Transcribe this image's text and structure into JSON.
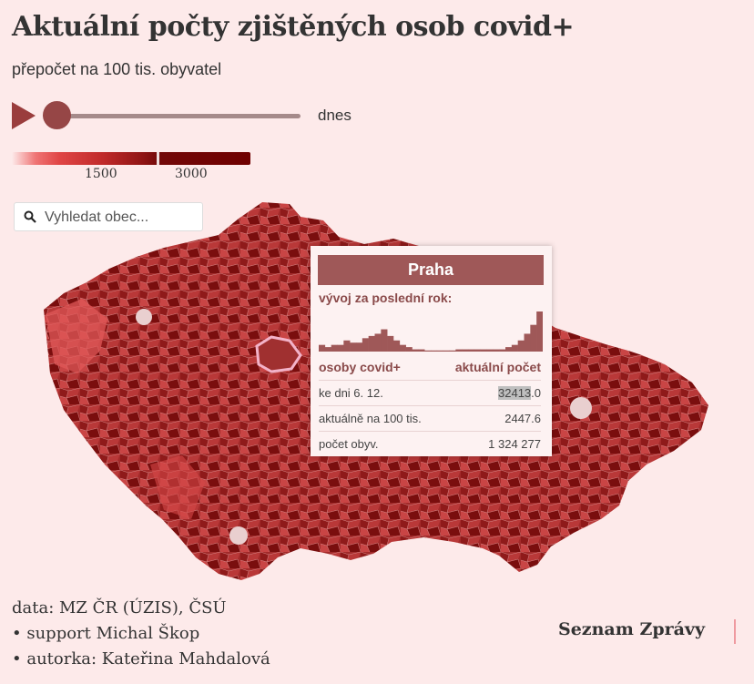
{
  "header": {
    "title": "Aktuální počty zjištěných osob covid+",
    "subtitle": "přepočet na 100 tis. obyvatel"
  },
  "time_slider": {
    "position_label": "dnes",
    "value_fraction": 0.0
  },
  "legend": {
    "ticks": [
      "1500",
      "3000"
    ],
    "colors": [
      "#fdeaea",
      "#ef7474",
      "#c02a2a",
      "#700000"
    ]
  },
  "search": {
    "placeholder": "Vyhledat obec...",
    "value": ""
  },
  "map": {
    "region": "Czech Republic municipalities",
    "highlighted": "Praha",
    "fill_color": "#a32a2a",
    "highlight_outline": "#f3b3c9"
  },
  "tooltip": {
    "title": "Praha",
    "trend_label": "vývoj za poslední rok:",
    "col_left": "osoby covid+",
    "col_right": "aktuální počet",
    "rows": [
      {
        "label": "ke dni 6. 12.",
        "value_highlight": "32413",
        "value_rest": ".0"
      },
      {
        "label": "aktuálně na 100 tis.",
        "value": "2447.6"
      },
      {
        "label": "počet obyv.",
        "value": "1 324 277"
      }
    ],
    "sparkline": [
      3,
      2,
      3,
      3,
      5,
      4,
      4,
      6,
      7,
      8,
      10,
      7,
      5,
      3,
      2,
      1,
      1,
      0.5,
      0.5,
      0.5,
      0.5,
      0.5,
      1,
      1,
      1,
      1,
      1,
      1,
      1,
      1,
      2,
      3,
      5,
      8,
      12,
      18
    ]
  },
  "footer": {
    "credits": [
      "data: MZ ČR (ÚZIS), ČSÚ",
      "• support Michal Škop",
      "• autorka: Kateřina Mahdalová"
    ],
    "brand": "Seznam Zprávy"
  }
}
